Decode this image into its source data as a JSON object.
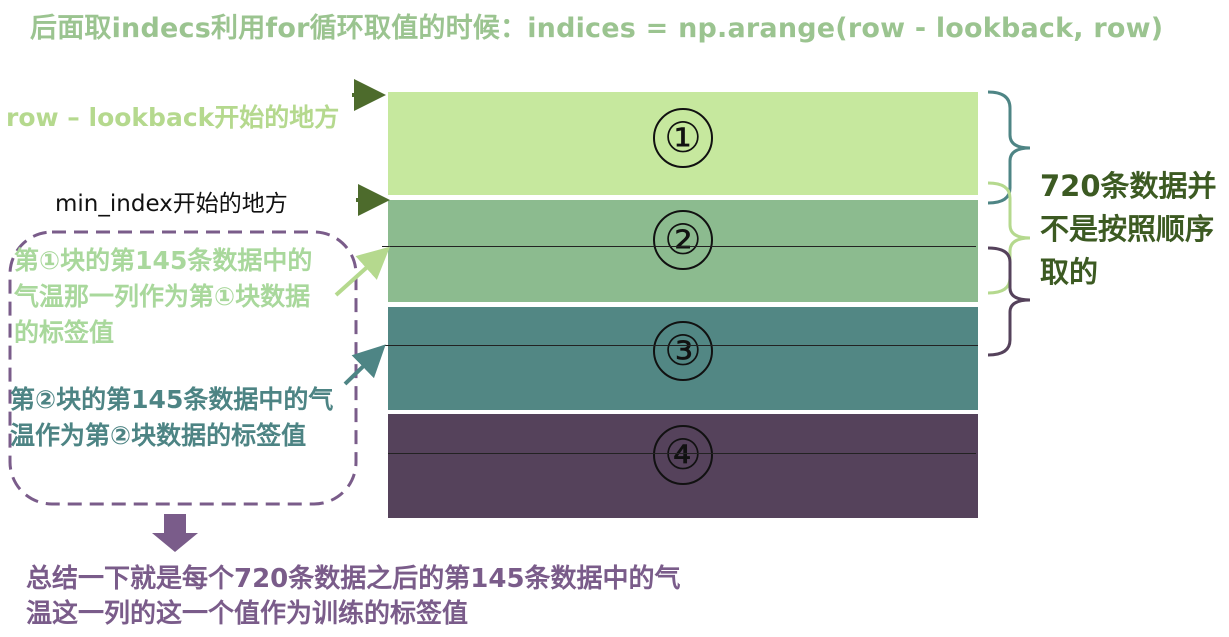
{
  "title": "后面取indecs利用for循环取值的时候：indices = np.arange(row - lookback, row)",
  "labels": {
    "row_start": "row – lookback开始的地方",
    "min_index": "min_index开始的地方"
  },
  "blocks": [
    {
      "label": "①",
      "color": "#c6e89e"
    },
    {
      "label": "②",
      "color": "#8cbb8f"
    },
    {
      "label": "③",
      "color": "#528784"
    },
    {
      "label": "④",
      "color": "#55425b"
    }
  ],
  "notes": {
    "block1": "第①块的第145条数据中的气温那一列作为第①块数据的标签值",
    "block2": "第②块的第145条数据中的气温作为第②块数据的标签值",
    "right": "720条数据并不是按照顺序取的",
    "summary": "总结一下就是每个720条数据之后的第145条数据中的气温这一列的这一个值作为训练的标签值"
  },
  "colors": {
    "title": "#9bc490",
    "arrow": "#4d6b2c",
    "dashed_box": "#7a5c8a",
    "brace1": "#4e8585",
    "brace2": "#b5d98e",
    "brace3": "#55425b"
  }
}
